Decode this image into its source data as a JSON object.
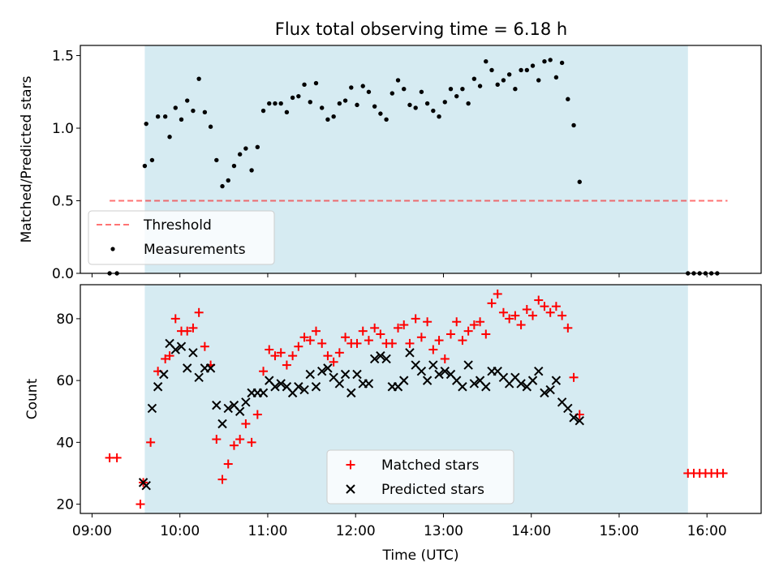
{
  "chart_data": [
    {
      "type": "scatter",
      "title": "Flux total observing time = 6.18 h",
      "xlabel": "",
      "ylabel": "Matched/Predicted stars",
      "x_time_range": [
        "08:52",
        "16:37"
      ],
      "ylim": [
        0,
        1.57
      ],
      "y_ticks": [
        "0.0",
        "0.5",
        "1.0",
        "1.5"
      ],
      "shaded_span": {
        "start": "09:36",
        "end": "15:47",
        "color": "#add8e6"
      },
      "threshold": {
        "name": "Threshold",
        "value": 0.5,
        "x_start": "09:12",
        "x_end": "16:14",
        "color": "#ff0000",
        "style": "dashed"
      },
      "legend": {
        "placement": "lower left",
        "entries": [
          "Threshold",
          "Measurements"
        ]
      },
      "series": [
        {
          "name": "Measurements",
          "color": "#000000",
          "points": [
            [
              "09:12",
              0.0
            ],
            [
              "09:17",
              0.0
            ],
            [
              "09:36",
              0.74
            ],
            [
              "09:37",
              1.03
            ],
            [
              "09:41",
              0.78
            ],
            [
              "09:45",
              1.08
            ],
            [
              "09:50",
              1.08
            ],
            [
              "09:53",
              0.94
            ],
            [
              "09:57",
              1.14
            ],
            [
              "10:01",
              1.06
            ],
            [
              "10:05",
              1.19
            ],
            [
              "10:09",
              1.12
            ],
            [
              "10:13",
              1.34
            ],
            [
              "10:17",
              1.11
            ],
            [
              "10:21",
              1.01
            ],
            [
              "10:25",
              0.78
            ],
            [
              "10:29",
              0.6
            ],
            [
              "10:33",
              0.64
            ],
            [
              "10:37",
              0.74
            ],
            [
              "10:41",
              0.82
            ],
            [
              "10:45",
              0.86
            ],
            [
              "10:49",
              0.71
            ],
            [
              "10:53",
              0.87
            ],
            [
              "10:57",
              1.12
            ],
            [
              "11:01",
              1.17
            ],
            [
              "11:05",
              1.17
            ],
            [
              "11:09",
              1.17
            ],
            [
              "11:13",
              1.11
            ],
            [
              "11:17",
              1.21
            ],
            [
              "11:21",
              1.22
            ],
            [
              "11:25",
              1.3
            ],
            [
              "11:29",
              1.18
            ],
            [
              "11:33",
              1.31
            ],
            [
              "11:37",
              1.14
            ],
            [
              "11:41",
              1.06
            ],
            [
              "11:45",
              1.08
            ],
            [
              "11:49",
              1.17
            ],
            [
              "11:53",
              1.19
            ],
            [
              "11:57",
              1.28
            ],
            [
              "12:01",
              1.16
            ],
            [
              "12:05",
              1.29
            ],
            [
              "12:09",
              1.25
            ],
            [
              "12:13",
              1.15
            ],
            [
              "12:17",
              1.1
            ],
            [
              "12:21",
              1.06
            ],
            [
              "12:25",
              1.24
            ],
            [
              "12:29",
              1.33
            ],
            [
              "12:33",
              1.27
            ],
            [
              "12:37",
              1.16
            ],
            [
              "12:41",
              1.14
            ],
            [
              "12:45",
              1.25
            ],
            [
              "12:49",
              1.17
            ],
            [
              "12:53",
              1.12
            ],
            [
              "12:57",
              1.08
            ],
            [
              "13:01",
              1.18
            ],
            [
              "13:05",
              1.27
            ],
            [
              "13:09",
              1.22
            ],
            [
              "13:13",
              1.27
            ],
            [
              "13:17",
              1.17
            ],
            [
              "13:21",
              1.34
            ],
            [
              "13:25",
              1.29
            ],
            [
              "13:29",
              1.46
            ],
            [
              "13:33",
              1.4
            ],
            [
              "13:37",
              1.3
            ],
            [
              "13:41",
              1.33
            ],
            [
              "13:45",
              1.37
            ],
            [
              "13:49",
              1.27
            ],
            [
              "13:53",
              1.4
            ],
            [
              "13:57",
              1.4
            ],
            [
              "14:01",
              1.43
            ],
            [
              "14:05",
              1.33
            ],
            [
              "14:09",
              1.46
            ],
            [
              "14:13",
              1.47
            ],
            [
              "14:17",
              1.35
            ],
            [
              "14:21",
              1.45
            ],
            [
              "14:25",
              1.2
            ],
            [
              "14:29",
              1.02
            ],
            [
              "14:33",
              0.63
            ],
            [
              "15:47",
              0.0
            ],
            [
              "15:51",
              0.0
            ],
            [
              "15:55",
              0.0
            ],
            [
              "15:59",
              0.0
            ],
            [
              "16:03",
              0.0
            ],
            [
              "16:07",
              0.0
            ]
          ]
        }
      ]
    },
    {
      "type": "scatter",
      "title": "",
      "xlabel": "Time (UTC)",
      "ylabel": "Count",
      "x_time_range": [
        "08:52",
        "16:37"
      ],
      "ylim": [
        17,
        91
      ],
      "y_ticks": [
        "20",
        "40",
        "60",
        "80"
      ],
      "x_ticks": [
        "09:00",
        "10:00",
        "11:00",
        "12:00",
        "13:00",
        "14:00",
        "15:00",
        "16:00"
      ],
      "shaded_span": {
        "start": "09:36",
        "end": "15:47",
        "color": "#add8e6"
      },
      "legend": {
        "placement": "lower center",
        "entries": [
          "Matched stars",
          "Predicted stars"
        ]
      },
      "series": [
        {
          "name": "Matched stars",
          "marker": "plus",
          "color": "#ff0000",
          "points": [
            [
              "09:12",
              35
            ],
            [
              "09:17",
              35
            ],
            [
              "09:33",
              20
            ],
            [
              "09:35",
              27
            ],
            [
              "09:40",
              40
            ],
            [
              "09:45",
              63
            ],
            [
              "09:50",
              67
            ],
            [
              "09:53",
              68
            ],
            [
              "09:57",
              80
            ],
            [
              "10:01",
              76
            ],
            [
              "10:05",
              76
            ],
            [
              "10:09",
              77
            ],
            [
              "10:13",
              82
            ],
            [
              "10:17",
              71
            ],
            [
              "10:21",
              65
            ],
            [
              "10:25",
              41
            ],
            [
              "10:29",
              28
            ],
            [
              "10:33",
              33
            ],
            [
              "10:37",
              39
            ],
            [
              "10:41",
              41
            ],
            [
              "10:45",
              46
            ],
            [
              "10:49",
              40
            ],
            [
              "10:53",
              49
            ],
            [
              "10:57",
              63
            ],
            [
              "11:01",
              70
            ],
            [
              "11:05",
              68
            ],
            [
              "11:09",
              69
            ],
            [
              "11:13",
              65
            ],
            [
              "11:17",
              68
            ],
            [
              "11:21",
              71
            ],
            [
              "11:25",
              74
            ],
            [
              "11:29",
              73
            ],
            [
              "11:33",
              76
            ],
            [
              "11:37",
              72
            ],
            [
              "11:41",
              68
            ],
            [
              "11:45",
              66
            ],
            [
              "11:49",
              69
            ],
            [
              "11:53",
              74
            ],
            [
              "11:57",
              72
            ],
            [
              "12:01",
              72
            ],
            [
              "12:05",
              76
            ],
            [
              "12:09",
              73
            ],
            [
              "12:13",
              77
            ],
            [
              "12:17",
              75
            ],
            [
              "12:21",
              72
            ],
            [
              "12:25",
              72
            ],
            [
              "12:29",
              77
            ],
            [
              "12:33",
              78
            ],
            [
              "12:37",
              72
            ],
            [
              "12:41",
              80
            ],
            [
              "12:45",
              74
            ],
            [
              "12:49",
              79
            ],
            [
              "12:53",
              70
            ],
            [
              "12:57",
              73
            ],
            [
              "13:01",
              67
            ],
            [
              "13:05",
              75
            ],
            [
              "13:09",
              79
            ],
            [
              "13:13",
              73
            ],
            [
              "13:17",
              76
            ],
            [
              "13:21",
              78
            ],
            [
              "13:25",
              79
            ],
            [
              "13:29",
              75
            ],
            [
              "13:33",
              85
            ],
            [
              "13:37",
              88
            ],
            [
              "13:41",
              82
            ],
            [
              "13:45",
              80
            ],
            [
              "13:49",
              81
            ],
            [
              "13:53",
              78
            ],
            [
              "13:57",
              83
            ],
            [
              "14:01",
              81
            ],
            [
              "14:05",
              86
            ],
            [
              "14:09",
              84
            ],
            [
              "14:13",
              82
            ],
            [
              "14:17",
              84
            ],
            [
              "14:21",
              81
            ],
            [
              "14:25",
              77
            ],
            [
              "14:29",
              61
            ],
            [
              "14:33",
              49
            ],
            [
              "15:47",
              30
            ],
            [
              "15:51",
              30
            ],
            [
              "15:55",
              30
            ],
            [
              "15:59",
              30
            ],
            [
              "16:03",
              30
            ],
            [
              "16:07",
              30
            ],
            [
              "16:11",
              30
            ]
          ]
        },
        {
          "name": "Predicted stars",
          "marker": "x",
          "color": "#000000",
          "points": [
            [
              "09:35",
              27
            ],
            [
              "09:37",
              26
            ],
            [
              "09:41",
              51
            ],
            [
              "09:45",
              58
            ],
            [
              "09:49",
              62
            ],
            [
              "09:53",
              72
            ],
            [
              "09:57",
              70
            ],
            [
              "10:01",
              71
            ],
            [
              "10:05",
              64
            ],
            [
              "10:09",
              69
            ],
            [
              "10:13",
              61
            ],
            [
              "10:17",
              64
            ],
            [
              "10:21",
              64
            ],
            [
              "10:25",
              52
            ],
            [
              "10:29",
              46
            ],
            [
              "10:33",
              51
            ],
            [
              "10:37",
              52
            ],
            [
              "10:41",
              50
            ],
            [
              "10:45",
              53
            ],
            [
              "10:49",
              56
            ],
            [
              "10:53",
              56
            ],
            [
              "10:57",
              56
            ],
            [
              "11:01",
              60
            ],
            [
              "11:05",
              58
            ],
            [
              "11:09",
              59
            ],
            [
              "11:13",
              58
            ],
            [
              "11:17",
              56
            ],
            [
              "11:21",
              58
            ],
            [
              "11:25",
              57
            ],
            [
              "11:29",
              62
            ],
            [
              "11:33",
              58
            ],
            [
              "11:37",
              63
            ],
            [
              "11:41",
              64
            ],
            [
              "11:45",
              61
            ],
            [
              "11:49",
              59
            ],
            [
              "11:53",
              62
            ],
            [
              "11:57",
              56
            ],
            [
              "12:01",
              62
            ],
            [
              "12:05",
              59
            ],
            [
              "12:09",
              59
            ],
            [
              "12:13",
              67
            ],
            [
              "12:17",
              68
            ],
            [
              "12:21",
              67
            ],
            [
              "12:25",
              58
            ],
            [
              "12:29",
              58
            ],
            [
              "12:33",
              60
            ],
            [
              "12:37",
              69
            ],
            [
              "12:41",
              65
            ],
            [
              "12:45",
              63
            ],
            [
              "12:49",
              60
            ],
            [
              "12:53",
              65
            ],
            [
              "12:57",
              62
            ],
            [
              "13:01",
              63
            ],
            [
              "13:05",
              62
            ],
            [
              "13:09",
              60
            ],
            [
              "13:13",
              58
            ],
            [
              "13:17",
              65
            ],
            [
              "13:21",
              59
            ],
            [
              "13:25",
              60
            ],
            [
              "13:29",
              58
            ],
            [
              "13:33",
              63
            ],
            [
              "13:37",
              63
            ],
            [
              "13:41",
              61
            ],
            [
              "13:45",
              59
            ],
            [
              "13:49",
              61
            ],
            [
              "13:53",
              59
            ],
            [
              "13:57",
              58
            ],
            [
              "14:01",
              60
            ],
            [
              "14:05",
              63
            ],
            [
              "14:09",
              56
            ],
            [
              "14:13",
              57
            ],
            [
              "14:17",
              60
            ],
            [
              "14:21",
              53
            ],
            [
              "14:25",
              51
            ],
            [
              "14:29",
              48
            ],
            [
              "14:33",
              47
            ]
          ]
        }
      ]
    }
  ]
}
